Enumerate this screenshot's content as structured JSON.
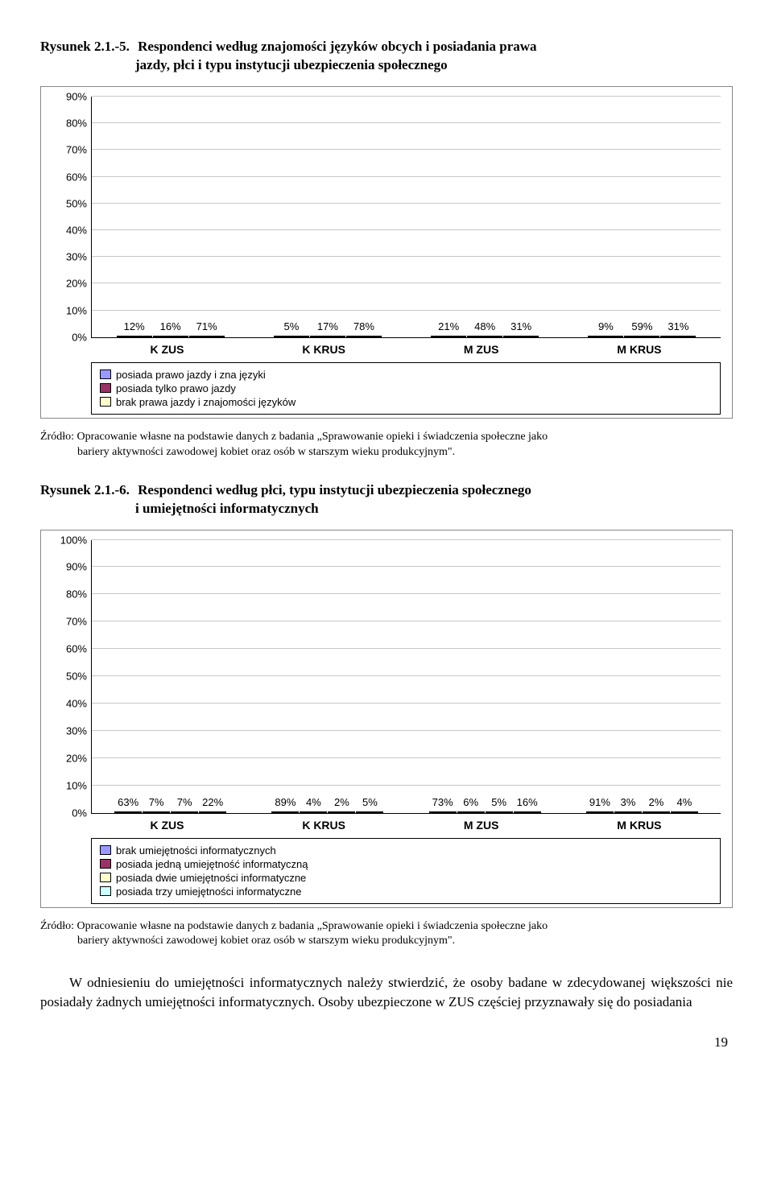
{
  "fig1": {
    "number": "Rysunek 2.1.-5.",
    "title_l1": "Respondenci według znajomości języków obcych i posiadania prawa",
    "title_l2": "jazdy, płci i typu instytucji ubezpieczenia społecznego",
    "y_ticks": [
      "0%",
      "10%",
      "20%",
      "30%",
      "40%",
      "50%",
      "60%",
      "70%",
      "80%",
      "90%"
    ],
    "y_max": 90,
    "categories": [
      "K ZUS",
      "K KRUS",
      "M ZUS",
      "M KRUS"
    ],
    "series": [
      {
        "name": "posiada prawo jazdy i zna języki",
        "color": "#9999ff"
      },
      {
        "name": "posiada tylko prawo jazdy",
        "color": "#993366"
      },
      {
        "name": "brak prawa jazdy i znajomości języków",
        "color": "#ffffcc"
      }
    ],
    "groups": [
      [
        {
          "v": 12,
          "l": "12%"
        },
        {
          "v": 16,
          "l": "16%"
        },
        {
          "v": 71,
          "l": "71%"
        }
      ],
      [
        {
          "v": 5,
          "l": "5%"
        },
        {
          "v": 17,
          "l": "17%"
        },
        {
          "v": 78,
          "l": "78%"
        }
      ],
      [
        {
          "v": 21,
          "l": "21%"
        },
        {
          "v": 48,
          "l": "48%"
        },
        {
          "v": 31,
          "l": "31%"
        }
      ],
      [
        {
          "v": 9,
          "l": "9%"
        },
        {
          "v": 59,
          "l": "59%"
        },
        {
          "v": 31,
          "l": "31%"
        }
      ]
    ]
  },
  "source1_l1": "Źródło: Opracowanie własne na podstawie danych z badania „Sprawowanie opieki i świadczenia społeczne jako",
  "source1_l2": "bariery aktywności zawodowej kobiet oraz osób w starszym wieku produkcyjnym\".",
  "fig2": {
    "number": "Rysunek 2.1.-6.",
    "title_l1": "Respondenci według płci, typu instytucji ubezpieczenia społecznego",
    "title_l2": "i umiejętności informatycznych",
    "y_ticks": [
      "0%",
      "10%",
      "20%",
      "30%",
      "40%",
      "50%",
      "60%",
      "70%",
      "80%",
      "90%",
      "100%"
    ],
    "y_max": 100,
    "categories": [
      "K ZUS",
      "K KRUS",
      "M ZUS",
      "M KRUS"
    ],
    "series": [
      {
        "name": "brak umiejętności informatycznych",
        "color": "#9999ff"
      },
      {
        "name": "posiada jedną umiejętność informatyczną",
        "color": "#993366"
      },
      {
        "name": "posiada dwie umiejętności informatyczne",
        "color": "#ffffcc"
      },
      {
        "name": "posiada trzy umiejętności informatyczne",
        "color": "#ccffff"
      }
    ],
    "groups": [
      [
        {
          "v": 63,
          "l": "63%"
        },
        {
          "v": 7,
          "l": "7%"
        },
        {
          "v": 7,
          "l": "7%"
        },
        {
          "v": 22,
          "l": "22%"
        }
      ],
      [
        {
          "v": 89,
          "l": "89%"
        },
        {
          "v": 4,
          "l": "4%"
        },
        {
          "v": 2,
          "l": "2%"
        },
        {
          "v": 5,
          "l": "5%"
        }
      ],
      [
        {
          "v": 73,
          "l": "73%"
        },
        {
          "v": 6,
          "l": "6%"
        },
        {
          "v": 5,
          "l": "5%"
        },
        {
          "v": 16,
          "l": "16%"
        }
      ],
      [
        {
          "v": 91,
          "l": "91%"
        },
        {
          "v": 3,
          "l": "3%"
        },
        {
          "v": 2,
          "l": "2%"
        },
        {
          "v": 4,
          "l": "4%"
        }
      ]
    ]
  },
  "source2_l1": "Źródło: Opracowanie własne na podstawie danych z badania „Sprawowanie opieki i świadczenia społeczne jako",
  "source2_l2": "bariery aktywności zawodowej kobiet oraz osób w starszym wieku produkcyjnym\".",
  "paragraph": "W odniesieniu do umiejętności informatycznych należy stwierdzić, że osoby badane w zdecydowanej większości nie posiadały żadnych umiejętności informatycznych. Osoby ubezpieczone w ZUS częściej przyznawały się do posiadania",
  "page_number": "19"
}
